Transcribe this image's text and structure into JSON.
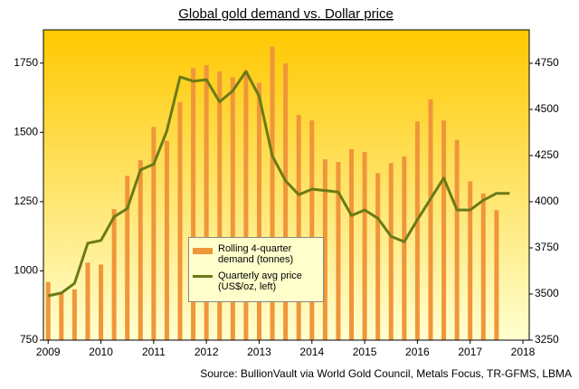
{
  "chart_data": {
    "type": "bar-line",
    "title": "Global gold demand vs. Dollar price",
    "source": "Source: BullionVault via World Gold Council, Metals Focus, TR-GFMS, LBMA",
    "xlim": [
      2008.91,
      2018.12
    ],
    "xticks": [
      2009,
      2010,
      2011,
      2012,
      2013,
      2014,
      2015,
      2016,
      2017,
      2018
    ],
    "ylim": [
      750,
      1870
    ],
    "yticks": [
      750,
      1000,
      1250,
      1500,
      1750
    ],
    "y2lim": [
      3250,
      4931
    ],
    "y2ticks": [
      3250,
      3500,
      3750,
      4000,
      4250,
      4500,
      4750
    ],
    "series": [
      {
        "name": "Rolling 4-quarter demand (tonnes)",
        "type": "bar",
        "axis": "y2",
        "color": "#f0963a",
        "x": [
          2009,
          2009.25,
          2009.5,
          2009.75,
          2010,
          2010.25,
          2010.5,
          2010.75,
          2011,
          2011.25,
          2011.5,
          2011.75,
          2012,
          2012.25,
          2012.5,
          2012.75,
          2013,
          2013.25,
          2013.5,
          2013.75,
          2014,
          2014.25,
          2014.5,
          2014.75,
          2015,
          2015.25,
          2015.5,
          2015.75,
          2016,
          2016.25,
          2016.5,
          2016.75,
          2017,
          2017.25,
          2017.5
        ],
        "values": [
          3565,
          3505,
          3525,
          3670,
          3660,
          3960,
          4140,
          4225,
          4405,
          4330,
          4540,
          4725,
          4740,
          4705,
          4675,
          4705,
          4645,
          4840,
          4750,
          4470,
          4440,
          4230,
          4215,
          4285,
          4270,
          4155,
          4210,
          4245,
          4435,
          4555,
          4440,
          4335,
          4110,
          4045,
          3955
        ]
      },
      {
        "name": "Quarterly avg price (US$/oz, left)",
        "type": "line",
        "color": "#6b7a16",
        "x": [
          2009,
          2009.25,
          2009.5,
          2009.75,
          2010,
          2010.25,
          2010.5,
          2010.75,
          2011,
          2011.25,
          2011.5,
          2011.75,
          2012,
          2012.25,
          2012.5,
          2012.75,
          2013,
          2013.25,
          2013.5,
          2013.75,
          2014,
          2014.25,
          2014.5,
          2014.75,
          2015,
          2015.25,
          2015.5,
          2015.75,
          2016,
          2016.25,
          2016.5,
          2016.75,
          2017,
          2017.25,
          2017.5,
          2017.75
        ],
        "values": [
          910,
          920,
          955,
          1100,
          1110,
          1195,
          1225,
          1365,
          1385,
          1505,
          1700,
          1685,
          1690,
          1610,
          1650,
          1720,
          1630,
          1415,
          1325,
          1275,
          1295,
          1290,
          1285,
          1200,
          1220,
          1190,
          1125,
          1105,
          1185,
          1260,
          1335,
          1220,
          1220,
          1255,
          1280,
          1280
        ]
      }
    ]
  }
}
